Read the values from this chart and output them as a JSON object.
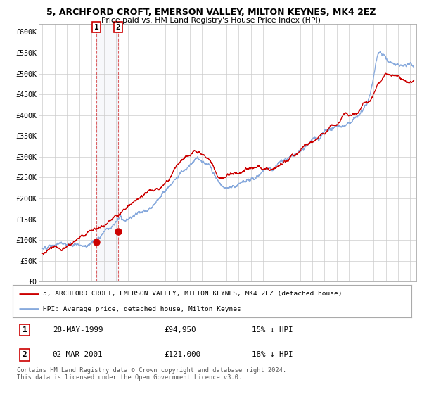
{
  "title": "5, ARCHFORD CROFT, EMERSON VALLEY, MILTON KEYNES, MK4 2EZ",
  "subtitle": "Price paid vs. HM Land Registry's House Price Index (HPI)",
  "background_color": "#ffffff",
  "plot_bg_color": "#ffffff",
  "grid_color": "#cccccc",
  "hpi_color": "#88aadd",
  "price_color": "#cc0000",
  "ylim": [
    0,
    620000
  ],
  "yticks": [
    0,
    50000,
    100000,
    150000,
    200000,
    250000,
    300000,
    350000,
    400000,
    450000,
    500000,
    550000,
    600000
  ],
  "ytick_labels": [
    "£0",
    "£50K",
    "£100K",
    "£150K",
    "£200K",
    "£250K",
    "£300K",
    "£350K",
    "£400K",
    "£450K",
    "£500K",
    "£550K",
    "£600K"
  ],
  "sale1_date_num": 1999.41,
  "sale1_price": 94950,
  "sale2_date_num": 2001.17,
  "sale2_price": 121000,
  "legend_line1": "5, ARCHFORD CROFT, EMERSON VALLEY, MILTON KEYNES, MK4 2EZ (detached house)",
  "legend_line2": "HPI: Average price, detached house, Milton Keynes",
  "table_row1": [
    "1",
    "28-MAY-1999",
    "£94,950",
    "15% ↓ HPI"
  ],
  "table_row2": [
    "2",
    "02-MAR-2001",
    "£121,000",
    "18% ↓ HPI"
  ],
  "footnote": "Contains HM Land Registry data © Crown copyright and database right 2024.\nThis data is licensed under the Open Government Licence v3.0.",
  "xlim_start": 1994.7,
  "xlim_end": 2025.5
}
